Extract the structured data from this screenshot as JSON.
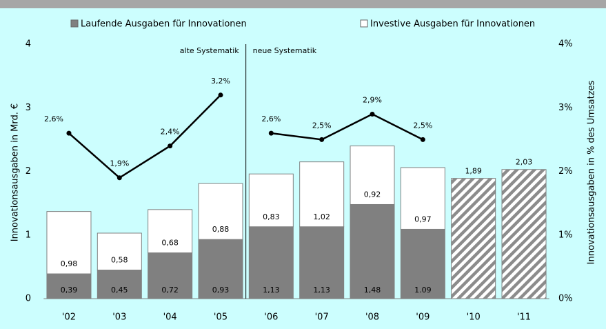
{
  "chart_data": {
    "type": "bar",
    "stacked": true,
    "categories": [
      "'02",
      "'03",
      "'04",
      "'05",
      "'06",
      "'07",
      "'08",
      "'09",
      "'10",
      "'11"
    ],
    "series": [
      {
        "name": "Laufende Ausgaben für Innovationen",
        "color": "#808080",
        "values": [
          0.39,
          0.45,
          0.72,
          0.93,
          1.13,
          1.13,
          1.48,
          1.09,
          null,
          null
        ],
        "value_labels": [
          "0,39",
          "0,45",
          "0,72",
          "0,93",
          "1,13",
          "1,13",
          "1,48",
          "1.09",
          null,
          null
        ]
      },
      {
        "name": "Investive Ausgaben für Innovationen",
        "color": "#ffffff",
        "values": [
          0.98,
          0.58,
          0.68,
          0.88,
          0.83,
          1.02,
          0.92,
          0.97,
          null,
          null
        ],
        "value_labels": [
          "0,98",
          "0,58",
          "0,68",
          "0,88",
          "0,83",
          "1,02",
          "0,92",
          "0,97",
          null,
          null
        ]
      },
      {
        "color": "#808080",
        "pattern": "hatch",
        "values": [
          null,
          null,
          null,
          null,
          null,
          null,
          null,
          null,
          1.89,
          2.03
        ],
        "value_labels": [
          null,
          null,
          null,
          null,
          null,
          null,
          null,
          null,
          "1,89",
          "2,03"
        ]
      },
      {
        "type": "line",
        "axis": "y2",
        "color": "#000000",
        "values": [
          2.6,
          1.9,
          2.4,
          3.2,
          null,
          null,
          null,
          null,
          null,
          null
        ],
        "value_labels": [
          "2,6%",
          "1,9%",
          "2,4%",
          "3,2%",
          null,
          null,
          null,
          null,
          null,
          null
        ]
      },
      {
        "type": "line",
        "axis": "y2",
        "color": "#000000",
        "values": [
          null,
          null,
          null,
          null,
          2.6,
          2.5,
          2.9,
          2.5,
          null,
          null
        ],
        "value_labels": [
          null,
          null,
          null,
          null,
          "2,6%",
          "2,5%",
          "2,9%",
          "2,5%",
          null,
          null
        ]
      }
    ],
    "ylabel": "Innovationsausgaben in Mrd. €",
    "y2label": "Innovationsausgaben in % des Umsatzes",
    "ylim": [
      0,
      4
    ],
    "yticks": [
      0,
      1,
      2,
      3,
      4
    ],
    "y2lim": [
      0,
      4
    ],
    "y2ticks": [
      {
        "value": 0,
        "label": "0%"
      },
      {
        "value": 1,
        "label": "1%"
      },
      {
        "value": 2,
        "label": "2%"
      },
      {
        "value": 3,
        "label": "3%"
      },
      {
        "value": 4,
        "label": "4%"
      }
    ],
    "annotations": [
      "alte Systematik",
      "neue Systematik"
    ],
    "legend": "top"
  }
}
